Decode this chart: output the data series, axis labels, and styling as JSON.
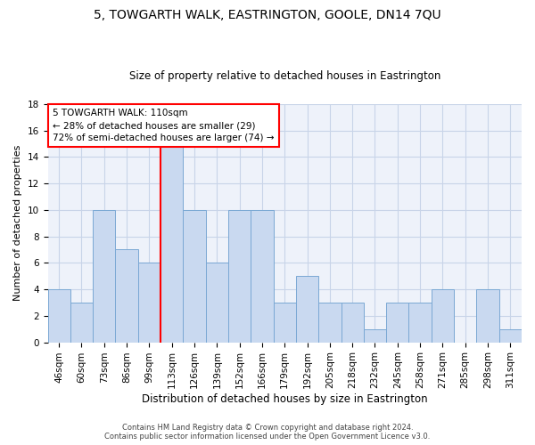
{
  "title": "5, TOWGARTH WALK, EASTRINGTON, GOOLE, DN14 7QU",
  "subtitle": "Size of property relative to detached houses in Eastrington",
  "xlabel": "Distribution of detached houses by size in Eastrington",
  "ylabel": "Number of detached properties",
  "bar_labels": [
    "46sqm",
    "60sqm",
    "73sqm",
    "86sqm",
    "99sqm",
    "113sqm",
    "126sqm",
    "139sqm",
    "152sqm",
    "166sqm",
    "179sqm",
    "192sqm",
    "205sqm",
    "218sqm",
    "232sqm",
    "245sqm",
    "258sqm",
    "271sqm",
    "285sqm",
    "298sqm",
    "311sqm"
  ],
  "bar_values": [
    4,
    3,
    10,
    7,
    6,
    15,
    10,
    6,
    10,
    10,
    3,
    5,
    3,
    3,
    1,
    3,
    3,
    4,
    0,
    4,
    1
  ],
  "bar_color": "#c9d9f0",
  "bar_edge_color": "#7aa8d4",
  "annotation_text": "5 TOWGARTH WALK: 110sqm\n← 28% of detached houses are smaller (29)\n72% of semi-detached houses are larger (74) →",
  "annotation_box_color": "white",
  "annotation_box_edge_color": "red",
  "vline_color": "red",
  "vline_x": 4.5,
  "ylim": [
    0,
    18
  ],
  "yticks": [
    0,
    2,
    4,
    6,
    8,
    10,
    12,
    14,
    16,
    18
  ],
  "footer_line1": "Contains HM Land Registry data © Crown copyright and database right 2024.",
  "footer_line2": "Contains public sector information licensed under the Open Government Licence v3.0.",
  "bg_color": "#eef2fa",
  "grid_color": "#c8d4e8",
  "title_fontsize": 10,
  "subtitle_fontsize": 8.5,
  "ylabel_fontsize": 8,
  "xlabel_fontsize": 8.5,
  "tick_fontsize": 7.5,
  "annotation_fontsize": 7.5,
  "footer_fontsize": 6
}
